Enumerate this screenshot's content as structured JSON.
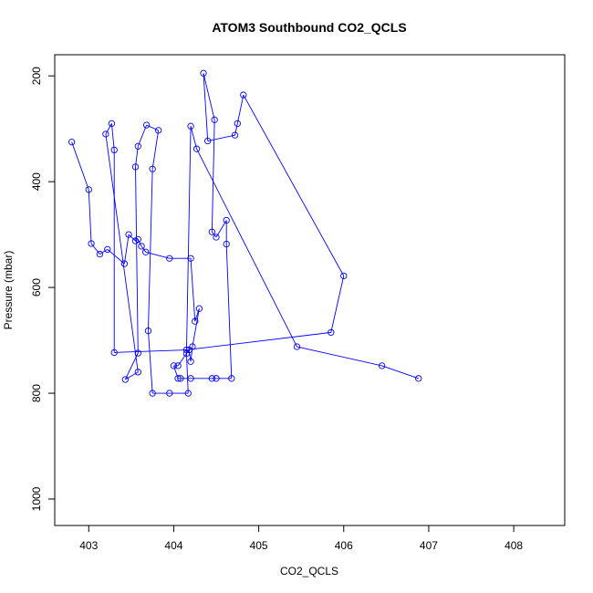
{
  "chart_data": {
    "type": "line",
    "title": "ATOM3 Southbound CO2_QCLS",
    "xlabel": "CO2_QCLS",
    "ylabel": "Pressure (mbar)",
    "xlim": [
      402.6,
      408.6
    ],
    "ylim": [
      1050,
      160
    ],
    "y_reversed": true,
    "grid": false,
    "legend": "none",
    "series_color": "#0000ff",
    "xticks": [
      403,
      404,
      405,
      406,
      407,
      408
    ],
    "yticks": [
      200,
      400,
      600,
      800,
      1000
    ],
    "series": [
      {
        "points": [
          [
            402.8,
            325
          ],
          [
            403.0,
            415
          ],
          [
            403.03,
            517
          ],
          [
            403.13,
            537
          ],
          [
            403.22,
            528
          ],
          [
            403.42,
            555
          ],
          [
            403.47,
            500
          ],
          [
            403.55,
            512
          ],
          [
            403.58,
            509
          ],
          [
            403.62,
            522
          ],
          [
            403.67,
            533
          ],
          [
            403.95,
            545
          ],
          [
            404.2,
            545
          ],
          [
            404.25,
            664
          ],
          [
            404.3,
            640
          ],
          [
            404.22,
            712
          ],
          [
            404.2,
            740
          ],
          [
            404.18,
            718
          ],
          [
            404.05,
            748
          ],
          [
            404.0,
            748
          ],
          [
            404.05,
            772
          ],
          [
            404.08,
            772
          ],
          [
            404.2,
            772
          ],
          [
            404.45,
            772
          ],
          [
            404.5,
            772
          ],
          [
            404.68,
            772
          ],
          [
            404.62,
            518
          ],
          [
            404.62,
            473
          ],
          [
            404.5,
            505
          ],
          [
            404.45,
            495
          ],
          [
            404.48,
            283
          ],
          [
            404.35,
            195
          ],
          [
            404.4,
            323
          ],
          [
            404.72,
            312
          ],
          [
            404.75,
            290
          ],
          [
            404.82,
            236
          ],
          [
            406.0,
            578
          ],
          [
            405.85,
            685
          ],
          [
            404.15,
            718
          ],
          [
            403.3,
            723
          ],
          [
            403.3,
            340
          ],
          [
            403.27,
            290
          ],
          [
            403.2,
            310
          ],
          [
            403.58,
            760
          ],
          [
            403.43,
            774
          ],
          [
            403.58,
            724
          ],
          [
            403.55,
            372
          ],
          [
            403.58,
            333
          ],
          [
            403.68,
            293
          ],
          [
            403.82,
            303
          ],
          [
            403.75,
            376
          ],
          [
            403.7,
            682
          ],
          [
            403.75,
            800
          ],
          [
            403.95,
            800
          ],
          [
            404.17,
            800
          ],
          [
            404.15,
            725
          ],
          [
            404.2,
            295
          ],
          [
            404.27,
            338
          ],
          [
            405.45,
            712
          ],
          [
            406.45,
            748
          ],
          [
            406.88,
            772
          ]
        ]
      }
    ]
  }
}
